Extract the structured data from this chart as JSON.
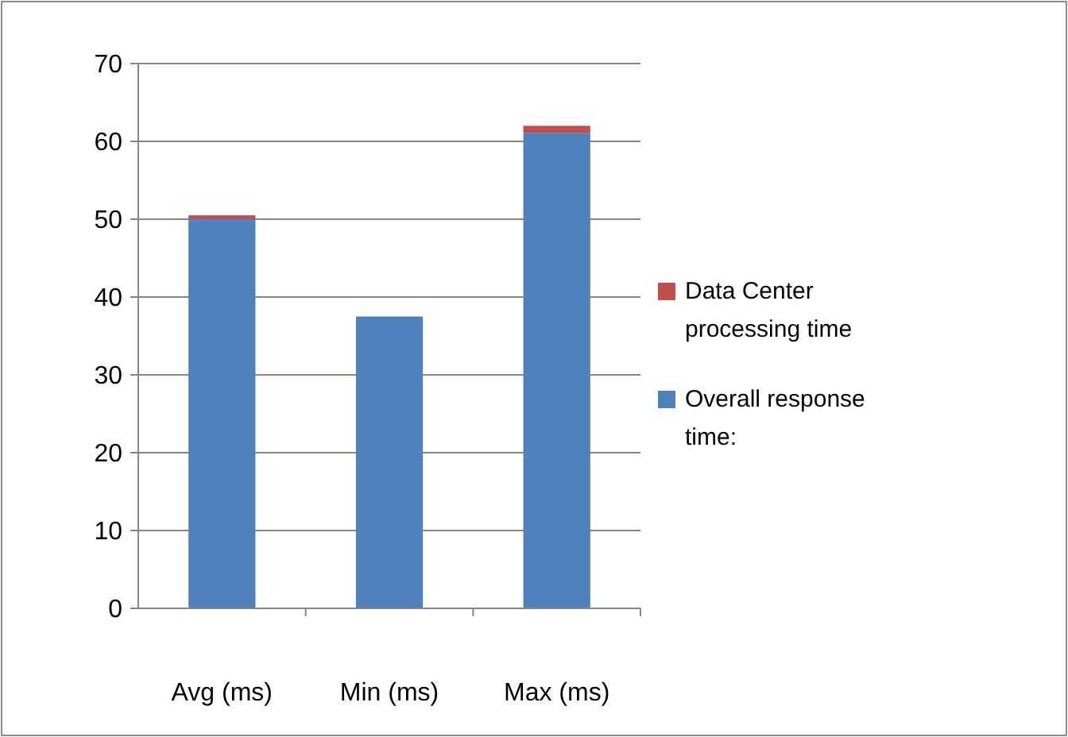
{
  "chart_data": {
    "type": "bar",
    "stacked": true,
    "categories": [
      "Avg (ms)",
      "Min (ms)",
      "Max (ms)"
    ],
    "series": [
      {
        "name": "Overall response time:",
        "color": "#4f81bd",
        "values": [
          50,
          37.5,
          61.1
        ]
      },
      {
        "name": "Data Center processing time",
        "color": "#c0504d",
        "values": [
          0.5,
          0,
          0.9
        ]
      }
    ],
    "ylim": [
      0,
      70
    ],
    "yticks": [
      0,
      10,
      20,
      30,
      40,
      50,
      60,
      70
    ],
    "grid": "y",
    "legend": "right"
  }
}
